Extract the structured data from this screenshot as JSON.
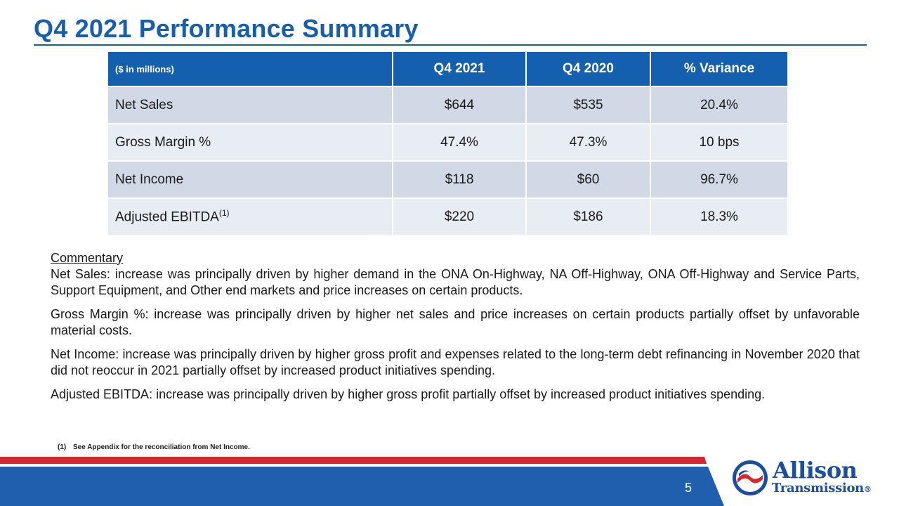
{
  "page": {
    "title": "Q4 2021 Performance Summary",
    "page_number": "5"
  },
  "table": {
    "headers": [
      "($ in millions)",
      "Q4 2021",
      "Q4 2020",
      "% Variance"
    ],
    "rows": [
      {
        "label": "Net Sales",
        "sup": "",
        "q4_2021": "$644",
        "q4_2020": "$535",
        "variance": "20.4%"
      },
      {
        "label": "Gross Margin %",
        "sup": "",
        "q4_2021": "47.4%",
        "q4_2020": "47.3%",
        "variance": "10 bps"
      },
      {
        "label": "Net Income",
        "sup": "",
        "q4_2021": "$118",
        "q4_2020": "$60",
        "variance": "96.7%"
      },
      {
        "label": "Adjusted EBITDA",
        "sup": "(1)",
        "q4_2021": "$220",
        "q4_2020": "$186",
        "variance": "18.3%"
      }
    ]
  },
  "commentary": {
    "heading": "Commentary",
    "paragraphs": [
      "Net Sales: increase was principally driven by higher demand in the ONA On-Highway, NA Off-Highway, ONA Off-Highway and Service Parts, Support Equipment, and Other end markets and price increases on certain products.",
      "Gross Margin %: increase was principally driven by higher net sales and price increases on certain products partially offset by unfavorable material costs.",
      "Net Income: increase was principally driven by higher gross profit and expenses related to the long-term debt refinancing in November 2020 that did not reoccur in 2021 partially offset by increased product initiatives spending.",
      "Adjusted EBITDA: increase was principally driven by higher gross profit partially offset by increased product initiatives spending."
    ]
  },
  "footnote": {
    "number": "(1)",
    "text": "See Appendix for the reconciliation from Net Income."
  },
  "logo": {
    "word1": "Allison",
    "word2": "Transmission",
    "mark": "®"
  },
  "colors": {
    "title_blue": "#1b5ea8",
    "header_blue": "#1560ae",
    "bar_blue": "#1f5fad",
    "bar_red": "#d7262e",
    "logo_blue": "#1b4f9c"
  }
}
